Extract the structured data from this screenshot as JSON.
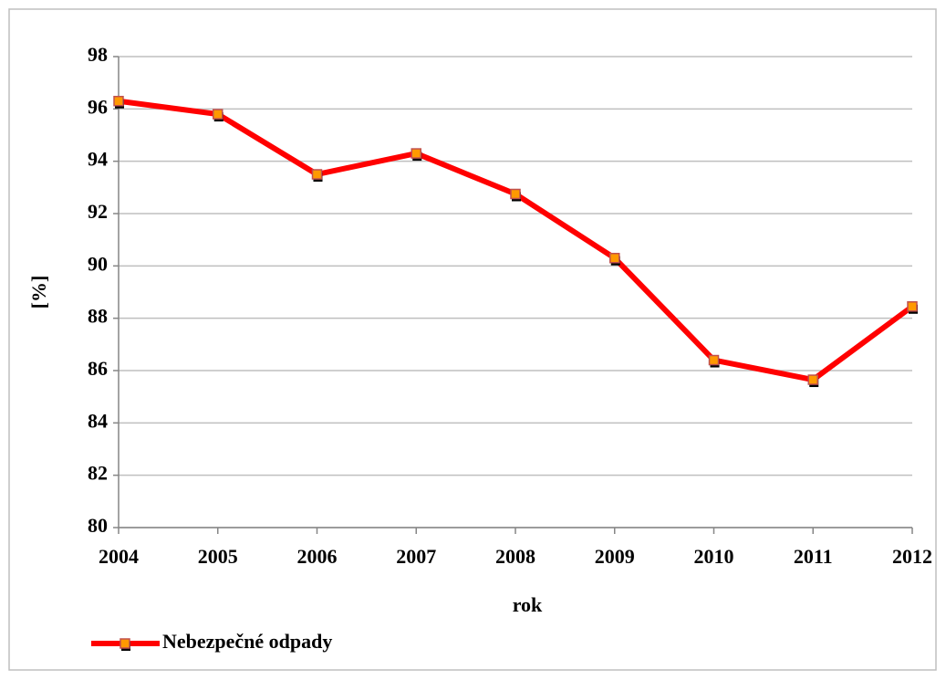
{
  "chart_data": {
    "type": "line",
    "x_label": "rok",
    "y_label": "[%]",
    "categories": [
      "2004",
      "2005",
      "2006",
      "2007",
      "2008",
      "2009",
      "2010",
      "2011",
      "2012"
    ],
    "series": [
      {
        "name": "Nebezpečné odpady",
        "color": "#ff0000",
        "marker_color": "#ff9900",
        "values": [
          96.3,
          95.8,
          93.5,
          94.3,
          92.75,
          90.3,
          86.4,
          85.65,
          88.45
        ]
      }
    ],
    "ylim": [
      80,
      98
    ],
    "yticks": [
      80,
      82,
      84,
      86,
      88,
      90,
      92,
      94,
      96,
      98
    ],
    "grid": true,
    "legend": "bottom-left"
  }
}
